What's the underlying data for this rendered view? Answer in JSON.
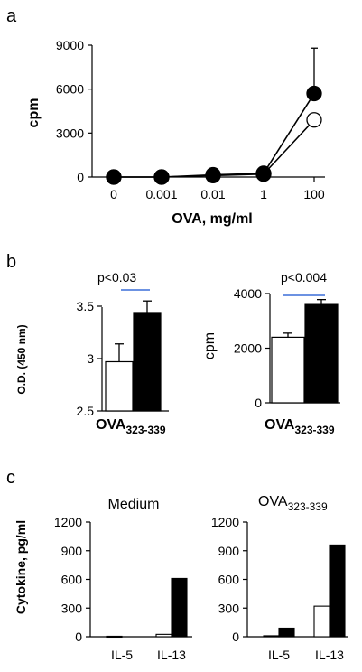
{
  "panel_labels": {
    "a": "a",
    "b": "b",
    "c": "c"
  },
  "colors": {
    "filled": "#000000",
    "open": "#ffffff",
    "significance_line": "#3b6fd8"
  },
  "chart_data": [
    {
      "id": "a",
      "type": "line",
      "xlabel": "OVA, mg/ml",
      "ylabel": "cpm",
      "categories": [
        "0",
        "0.001",
        "0.01",
        "1",
        "100"
      ],
      "ylim": [
        0,
        9000
      ],
      "yticks": [
        "0",
        "3000",
        "6000",
        "9000"
      ],
      "series": [
        {
          "marker": "filled-circle",
          "values": [
            0,
            0,
            150,
            250,
            5700
          ],
          "error": [
            0,
            0,
            0,
            0,
            3100
          ]
        },
        {
          "marker": "open-circle",
          "values": [
            0,
            0,
            100,
            200,
            3900
          ],
          "error": [
            0,
            0,
            0,
            0,
            0
          ]
        }
      ]
    },
    {
      "id": "b-left",
      "type": "bar",
      "ylabel": "O.D. (450 nm)",
      "xlabel_main": "OVA",
      "xlabel_sub": "323-339",
      "ylim": [
        2.5,
        3.5
      ],
      "yticks": [
        "2.5",
        "3",
        "3.5"
      ],
      "values": [
        2.97,
        3.44
      ],
      "error": [
        0.17,
        0.11
      ],
      "bar_colors": [
        "open",
        "filled"
      ],
      "annotation": "p<0.03"
    },
    {
      "id": "b-right",
      "type": "bar",
      "ylabel": "cpm",
      "xlabel_main": "OVA",
      "xlabel_sub": "323-339",
      "ylim": [
        0,
        4000
      ],
      "yticks": [
        "0",
        "2000",
        "4000"
      ],
      "values": [
        2400,
        3600
      ],
      "error": [
        150,
        180
      ],
      "bar_colors": [
        "open",
        "filled"
      ],
      "annotation": "p<0.004"
    },
    {
      "id": "c-left",
      "type": "bar",
      "title": "Medium",
      "ylabel": "Cytokine, pg/ml",
      "categories": [
        "IL-5",
        "IL-13"
      ],
      "ylim": [
        0,
        1200
      ],
      "yticks": [
        "0",
        "300",
        "600",
        "900",
        "1200"
      ],
      "series": [
        {
          "color": "open",
          "values": [
            5,
            25
          ]
        },
        {
          "color": "filled",
          "values": [
            0,
            610
          ]
        }
      ]
    },
    {
      "id": "c-right",
      "type": "bar",
      "title_main": "OVA",
      "title_sub": "323-339",
      "categories": [
        "IL-5",
        "IL-13"
      ],
      "ylim": [
        0,
        1200
      ],
      "yticks": [
        "0",
        "300",
        "600",
        "900",
        "1200"
      ],
      "series": [
        {
          "color": "open",
          "values": [
            10,
            320
          ]
        },
        {
          "color": "filled",
          "values": [
            90,
            960
          ]
        }
      ]
    }
  ]
}
